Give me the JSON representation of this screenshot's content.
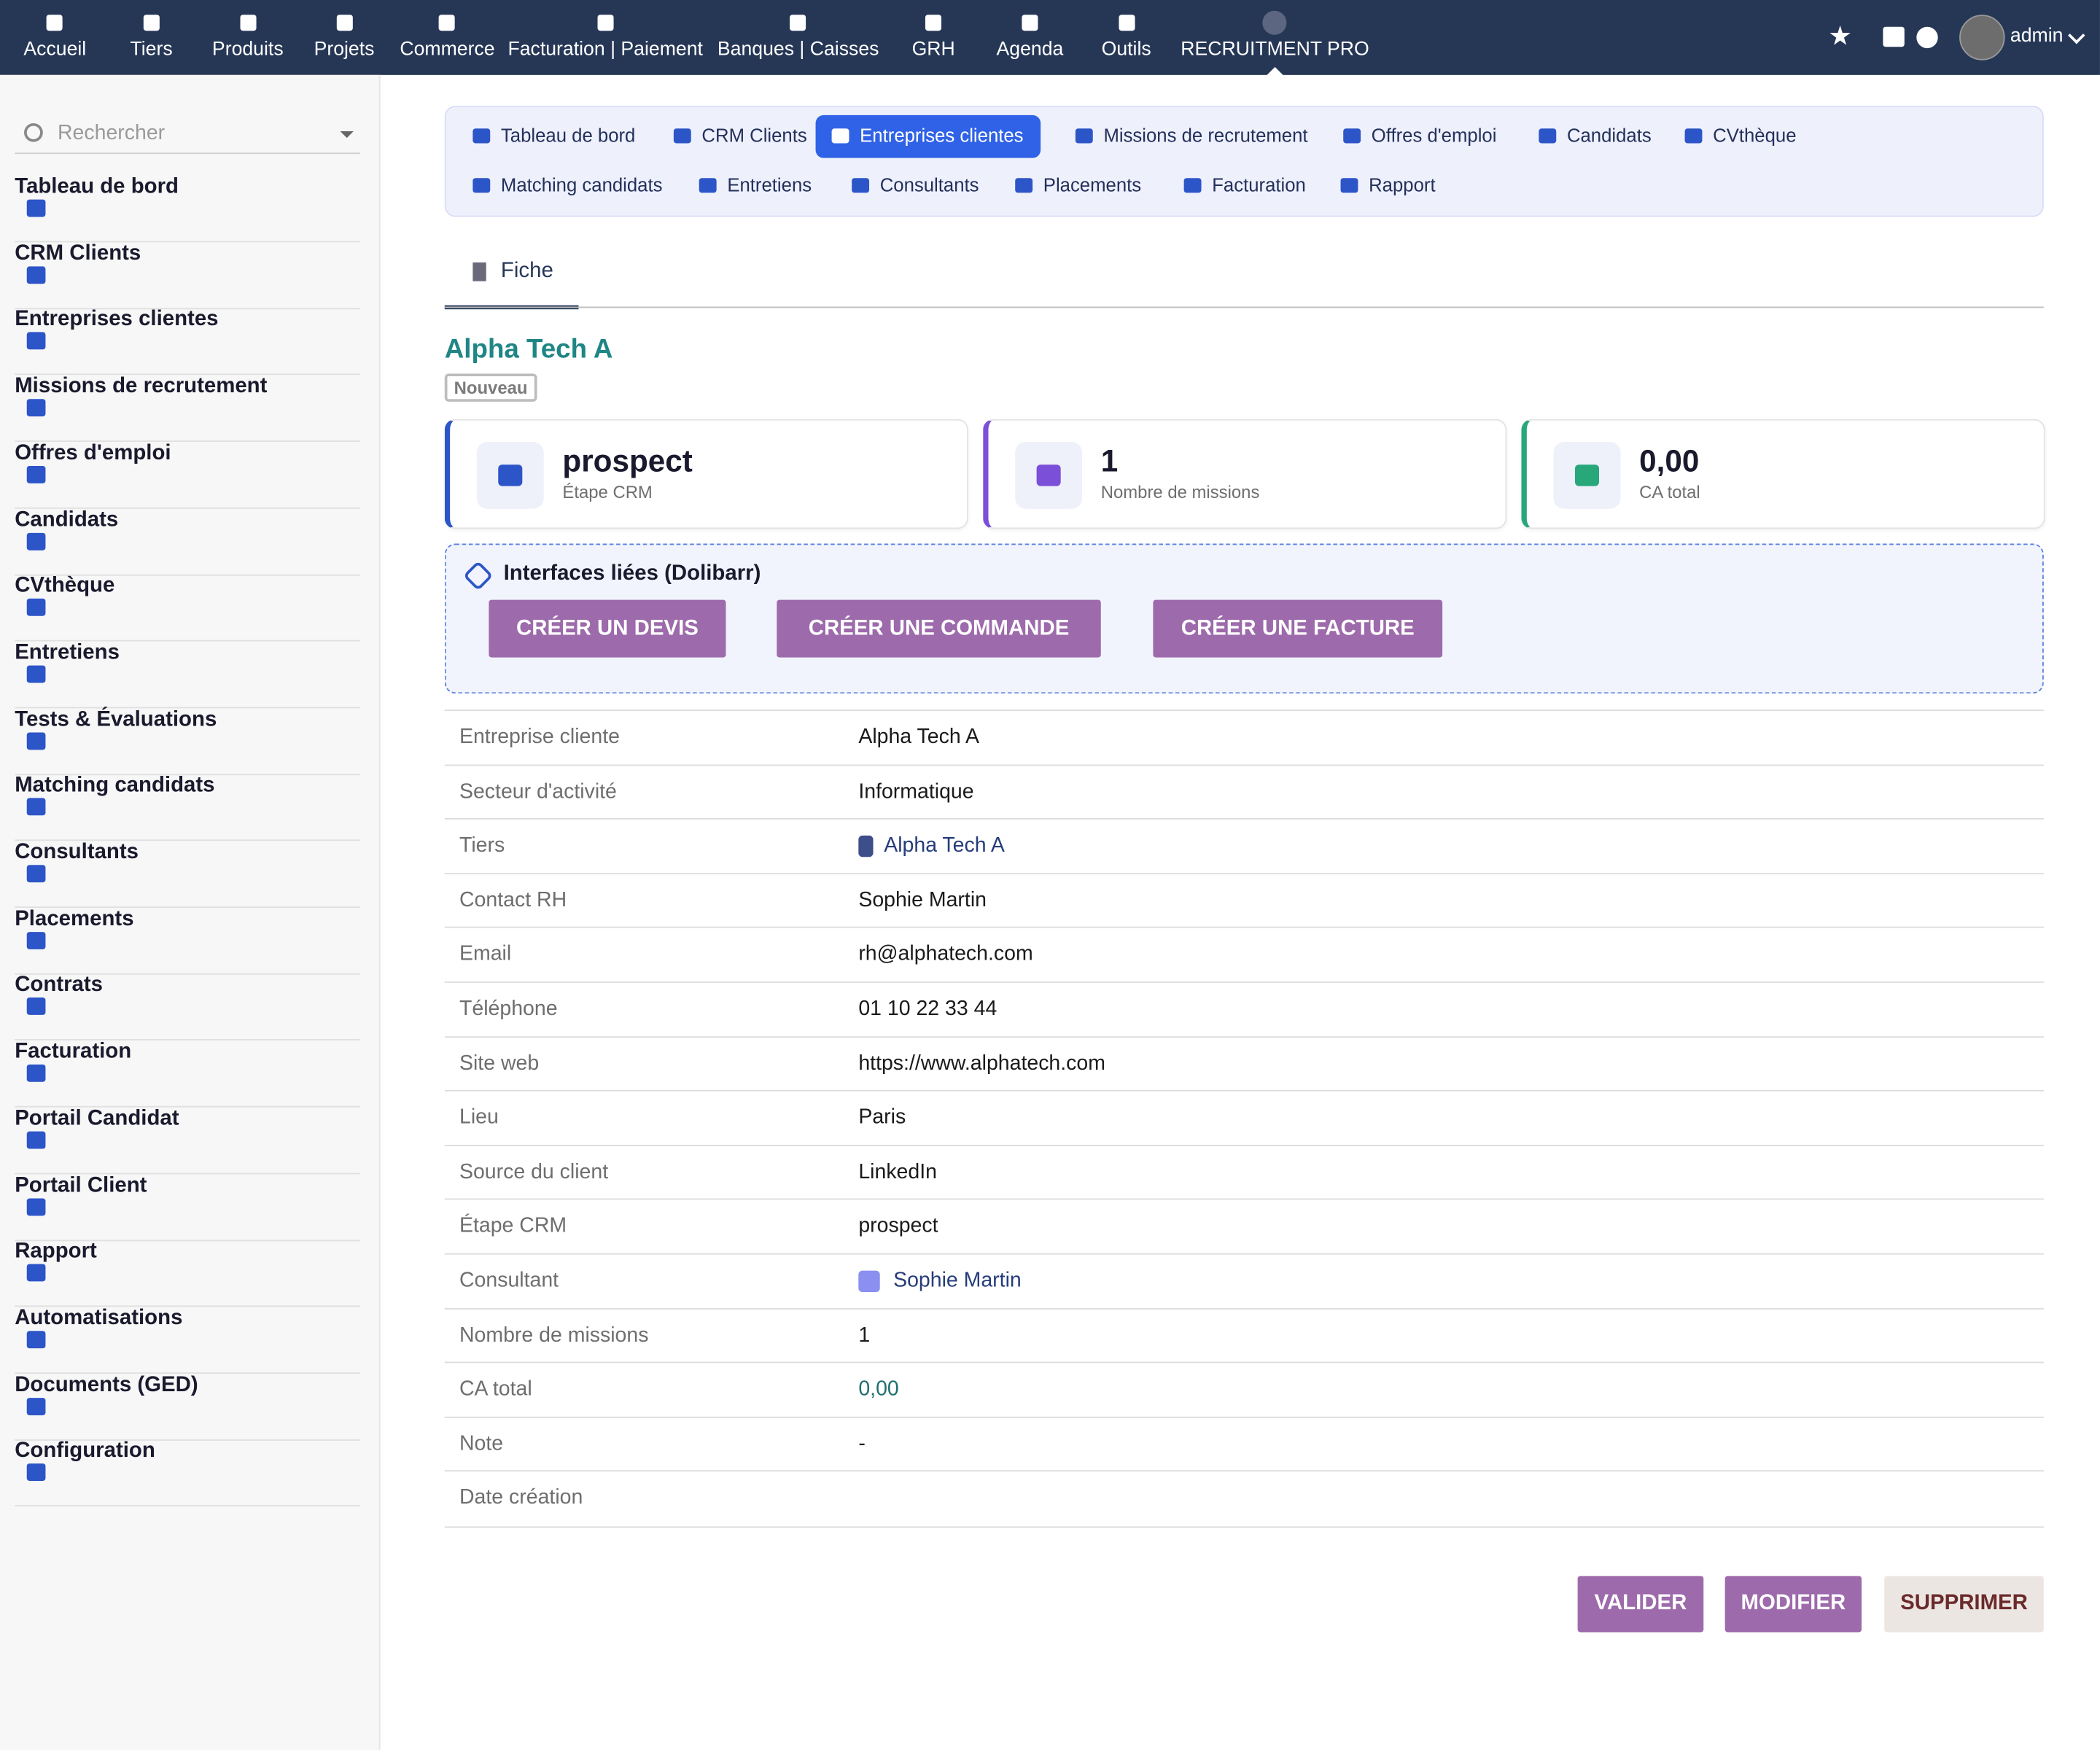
{
  "topnav": {
    "items": [
      "Accueil",
      "Tiers",
      "Produits",
      "Projets",
      "Commerce",
      "Facturation | Paiement",
      "Banques | Caisses",
      "GRH",
      "Agenda",
      "Outils",
      "RECRUITMENT PRO"
    ],
    "user": "admin"
  },
  "sidebar": {
    "search_placeholder": "Rechercher",
    "items": [
      "Tableau de bord",
      "CRM Clients",
      "Entreprises clientes",
      "Missions de recrutement",
      "Offres d'emploi",
      "Candidats",
      "CVthèque",
      "Entretiens",
      "Tests & Évaluations",
      "Matching candidats",
      "Consultants",
      "Placements",
      "Contrats",
      "Facturation",
      "Portail Candidat",
      "Portail Client",
      "Rapport",
      "Automatisations",
      "Documents (GED)",
      "Configuration"
    ]
  },
  "subnav": {
    "items": [
      "Tableau de bord",
      "CRM Clients",
      "Entreprises clientes",
      "Missions de recrutement",
      "Offres d'emploi",
      "Candidats",
      "CVthèque",
      "Matching candidats",
      "Entretiens",
      "Consultants",
      "Placements",
      "Facturation",
      "Rapport"
    ]
  },
  "tabs": [
    "Fiche"
  ],
  "record": {
    "title": "Alpha Tech A",
    "status": "Nouveau"
  },
  "cards": [
    {
      "value": "prospect",
      "label": "Étape CRM"
    },
    {
      "value": "1",
      "label": "Nombre de missions"
    },
    {
      "value": "0,00",
      "label": "CA total"
    }
  ],
  "linked": {
    "title": "Interfaces liées (Dolibarr)",
    "buttons": [
      "CRÉER UN DEVIS",
      "CRÉER UNE COMMANDE",
      "CRÉER UNE FACTURE"
    ]
  },
  "details": {
    "rows": [
      [
        "Entreprise cliente",
        "Alpha Tech A"
      ],
      [
        "Secteur d'activité",
        "Informatique"
      ],
      [
        "Tiers",
        "Alpha Tech A"
      ],
      [
        "Contact RH",
        "Sophie Martin"
      ],
      [
        "Email",
        "rh@alphatech.com"
      ],
      [
        "Téléphone",
        "01 10 22 33 44"
      ],
      [
        "Site web",
        "https://www.alphatech.com"
      ],
      [
        "Lieu",
        "Paris"
      ],
      [
        "Source du client",
        "LinkedIn"
      ],
      [
        "Étape CRM",
        "prospect"
      ],
      [
        "Consultant",
        "Sophie Martin"
      ],
      [
        "Nombre de missions",
        "1"
      ],
      [
        "CA total",
        "0,00"
      ],
      [
        "Note",
        "-"
      ],
      [
        "Date création"
      ]
    ]
  },
  "actions": [
    "VALIDER",
    "MODIFIER",
    "SUPPRIMER"
  ]
}
